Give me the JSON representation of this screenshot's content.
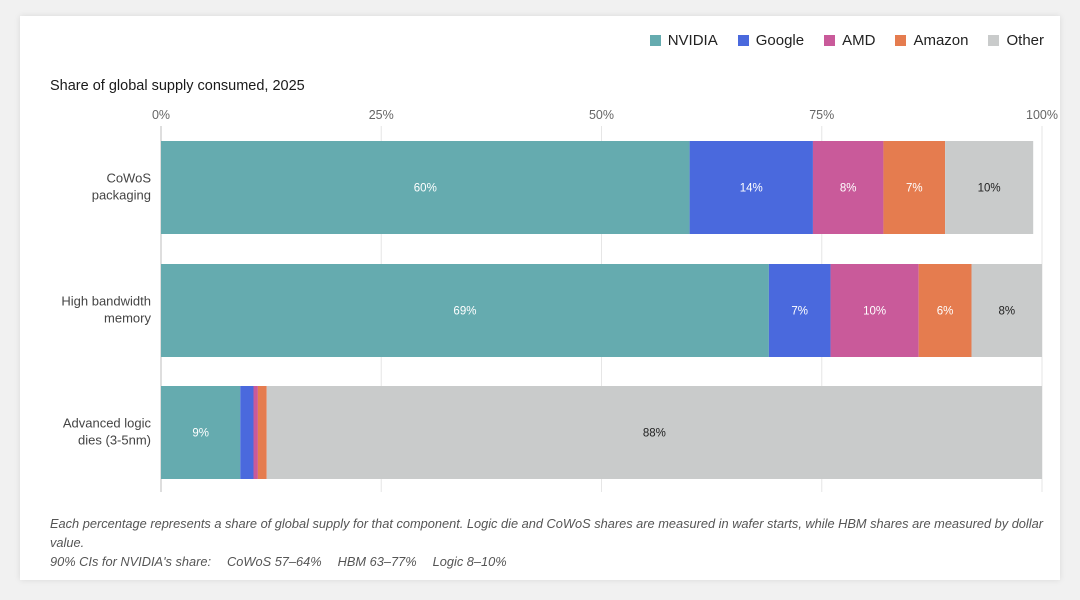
{
  "legend": [
    {
      "name": "NVIDIA",
      "color": "#65abaf"
    },
    {
      "name": "Google",
      "color": "#4a69dd"
    },
    {
      "name": "AMD",
      "color": "#c95a9a"
    },
    {
      "name": "Amazon",
      "color": "#e57c4f"
    },
    {
      "name": "Other",
      "color": "#c9cbcb"
    }
  ],
  "chart_data": {
    "type": "bar",
    "orientation": "horizontal",
    "stacked": true,
    "title": "Share of global supply consumed, 2025",
    "categories": [
      [
        "CoWoS",
        "packaging"
      ],
      [
        "High bandwidth",
        "memory"
      ],
      [
        "Advanced logic",
        "dies (3-5nm)"
      ]
    ],
    "series": [
      {
        "name": "NVIDIA",
        "color": "#65abaf",
        "values": [
          60,
          69,
          9
        ],
        "labels": [
          "60%",
          "69%",
          "9%"
        ],
        "label_color": "#ffffff"
      },
      {
        "name": "Google",
        "color": "#4a69dd",
        "values": [
          14,
          7,
          1.5
        ],
        "labels": [
          "14%",
          "7%",
          ""
        ],
        "label_color": "#ffffff"
      },
      {
        "name": "AMD",
        "color": "#c95a9a",
        "values": [
          8,
          10,
          0.5
        ],
        "labels": [
          "8%",
          "10%",
          ""
        ],
        "label_color": "#ffffff"
      },
      {
        "name": "Amazon",
        "color": "#e57c4f",
        "values": [
          7,
          6,
          1
        ],
        "labels": [
          "7%",
          "6%",
          ""
        ],
        "label_color": "#ffffff"
      },
      {
        "name": "Other",
        "color": "#c9cbcb",
        "values": [
          10,
          8,
          88
        ],
        "labels": [
          "10%",
          "8%",
          "88%"
        ],
        "label_color": "#222222"
      }
    ],
    "xlim": [
      0,
      100
    ],
    "xticks": [
      0,
      25,
      50,
      75,
      100
    ],
    "xtick_labels": [
      "0%",
      "25%",
      "50%",
      "75%",
      "100%"
    ],
    "grid": true,
    "legend_position": "top-right"
  },
  "footnote": {
    "line1": "Each percentage represents a share of global supply for that component. Logic die and CoWoS shares are measured in wafer starts, while HBM shares are measured by dollar value.",
    "ci_label": "90% CIs for NVIDIA's share:",
    "ci_cowos": "CoWoS 57–64%",
    "ci_hbm": "HBM 63–77%",
    "ci_logic": "Logic 8–10%"
  }
}
